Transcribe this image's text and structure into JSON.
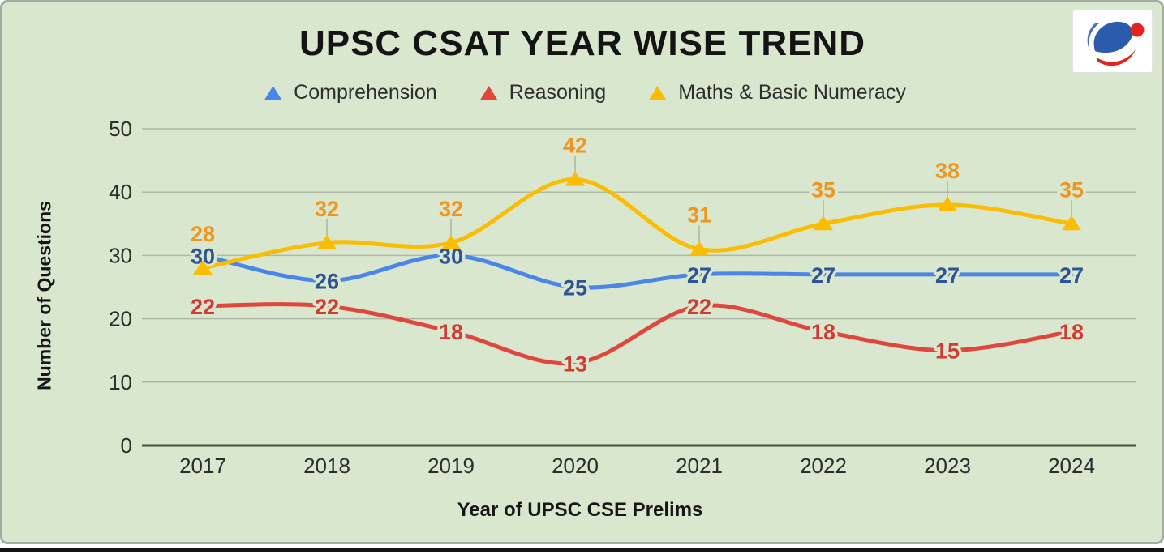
{
  "header": {
    "title": "UPSC CSAT YEAR WISE TREND",
    "logo_icon": "brand-swoosh-logo"
  },
  "chart_data": {
    "type": "line",
    "title": "UPSC CSAT YEAR WISE TREND",
    "xlabel": "Year of UPSC CSE Prelims",
    "ylabel": "Number of Questions",
    "categories": [
      "2017",
      "2018",
      "2019",
      "2020",
      "2021",
      "2022",
      "2023",
      "2024"
    ],
    "series": [
      {
        "name": "Comprehension",
        "color": "#4a86e8",
        "label_color": "#2f5496",
        "marker": "none",
        "values": [
          30,
          26,
          30,
          25,
          27,
          27,
          27,
          27
        ]
      },
      {
        "name": "Reasoning",
        "color": "#e0473c",
        "label_color": "#d23b31",
        "marker": "none",
        "values": [
          22,
          22,
          18,
          13,
          22,
          18,
          15,
          18
        ]
      },
      {
        "name": "Maths & Basic Numeracy",
        "color": "#fbbc04",
        "label_color": "#f0961e",
        "marker": "triangle",
        "values": [
          28,
          32,
          32,
          42,
          31,
          35,
          38,
          35
        ]
      }
    ],
    "ylim": [
      0,
      50
    ],
    "yticks": [
      0,
      10,
      20,
      30,
      40,
      50
    ],
    "grid": true,
    "legend_position": "top",
    "background": "#d9e7cf",
    "colors": {
      "gridline": "#aeb7a8",
      "baseline": "#474f42",
      "tick_text": "#2c2c2c",
      "leader_line": "#a9b2a3"
    }
  }
}
